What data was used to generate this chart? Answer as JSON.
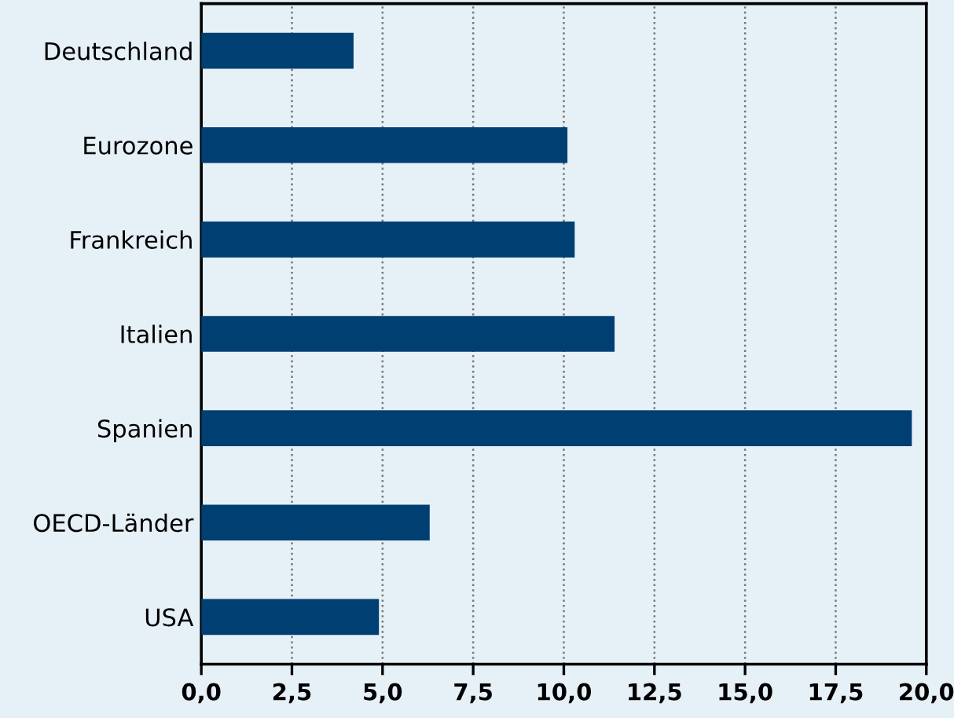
{
  "chart_data": {
    "type": "bar",
    "orientation": "horizontal",
    "categories": [
      "Deutschland",
      "Eurozone",
      "Frankreich",
      "Italien",
      "Spanien",
      "OECD-Länder",
      "USA"
    ],
    "values": [
      4.2,
      10.1,
      10.3,
      11.4,
      19.6,
      6.3,
      4.9
    ],
    "color": "#003f72",
    "xlim": [
      0,
      20
    ],
    "xticks": [
      {
        "value": 0,
        "label": "0,0"
      },
      {
        "value": 2.5,
        "label": "2,5"
      },
      {
        "value": 5,
        "label": "5,0"
      },
      {
        "value": 7.5,
        "label": "7,5"
      },
      {
        "value": 10,
        "label": "10,0"
      },
      {
        "value": 12.5,
        "label": "12,5"
      },
      {
        "value": 15,
        "label": "15,0"
      },
      {
        "value": 17.5,
        "label": "17,5"
      },
      {
        "value": 20,
        "label": "20,0"
      }
    ],
    "grid": "x"
  }
}
